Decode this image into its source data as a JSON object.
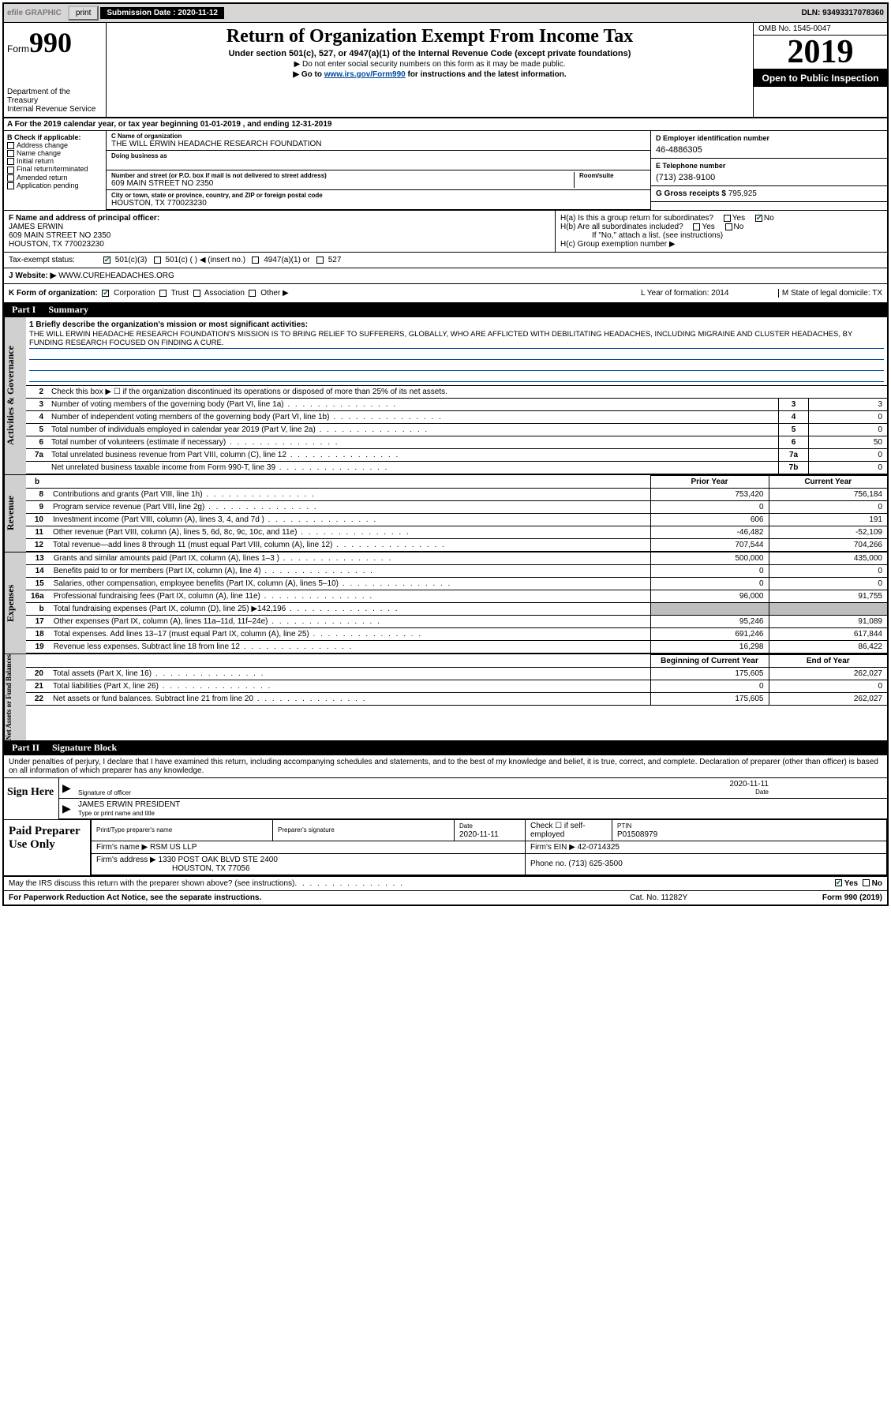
{
  "topbar": {
    "efile": "efile GRAPHIC",
    "print": "print",
    "subdate_label": "Submission Date :",
    "subdate": "2020-11-12",
    "dln": "DLN: 93493317078360"
  },
  "header": {
    "form_prefix": "Form",
    "form_no": "990",
    "dept": "Department of the Treasury\nInternal Revenue Service",
    "title": "Return of Organization Exempt From Income Tax",
    "sub1": "Under section 501(c), 527, or 4947(a)(1) of the Internal Revenue Code (except private foundations)",
    "sub2": "▶ Do not enter social security numbers on this form as it may be made public.",
    "sub3_pre": "▶ Go to ",
    "sub3_link": "www.irs.gov/Form990",
    "sub3_post": " for instructions and the latest information.",
    "omb": "OMB No. 1545-0047",
    "year": "2019",
    "open": "Open to Public Inspection"
  },
  "lineA": {
    "text": "A For the 2019 calendar year, or tax year beginning 01-01-2019    , and ending 12-31-2019"
  },
  "B": {
    "label": "B Check if applicable:",
    "opts": [
      "Address change",
      "Name change",
      "Initial return",
      "Final return/terminated",
      "Amended return",
      "Application pending"
    ]
  },
  "C": {
    "name_label": "C Name of organization",
    "name": "THE WILL ERWIN HEADACHE RESEARCH FOUNDATION",
    "dba_label": "Doing business as",
    "addr_label": "Number and street (or P.O. box if mail is not delivered to street address)",
    "room_label": "Room/suite",
    "addr": "609 MAIN STREET NO 2350",
    "city_label": "City or town, state or province, country, and ZIP or foreign postal code",
    "city": "HOUSTON, TX  770023230"
  },
  "D": {
    "label": "D Employer identification number",
    "val": "46-4886305"
  },
  "E": {
    "label": "E Telephone number",
    "val": "(713) 238-9100"
  },
  "G": {
    "label": "G Gross receipts $",
    "val": "795,925"
  },
  "F": {
    "label": "F  Name and address of principal officer:",
    "name": "JAMES ERWIN",
    "addr1": "609 MAIN STREET NO 2350",
    "addr2": "HOUSTON, TX  770023230"
  },
  "H": {
    "a": "H(a)  Is this a group return for subordinates?",
    "b": "H(b)  Are all subordinates included?",
    "bnote": "If \"No,\" attach a list. (see instructions)",
    "c": "H(c)  Group exemption number ▶"
  },
  "I": {
    "label": "Tax-exempt status:",
    "opts": [
      "501(c)(3)",
      "501(c) (   ) ◀ (insert no.)",
      "4947(a)(1) or",
      "527"
    ],
    "checked": 0
  },
  "J": {
    "label": "J  Website: ▶",
    "val": "WWW.CUREHEADACHES.ORG"
  },
  "K": {
    "label": "K Form of organization:",
    "opts": [
      "Corporation",
      "Trust",
      "Association",
      "Other ▶"
    ],
    "checked": 0,
    "L": "L Year of formation: 2014",
    "M": "M State of legal domicile: TX"
  },
  "part1": {
    "hdr_num": "Part I",
    "hdr_title": "Summary",
    "q1_label": "1  Briefly describe the organization's mission or most significant activities:",
    "q1_text": "THE WILL ERWIN HEADACHE RESEARCH FOUNDATION'S MISSION IS TO BRING RELIEF TO SUFFERERS, GLOBALLY, WHO ARE AFFLICTED WITH DEBILITATING HEADACHES, INCLUDING MIGRAINE AND CLUSTER HEADACHES, BY FUNDING RESEARCH FOCUSED ON FINDING A CURE.",
    "q2": "Check this box ▶ ☐  if the organization discontinued its operations or disposed of more than 25% of its net assets.",
    "side_act": "Activities & Governance",
    "side_rev": "Revenue",
    "side_exp": "Expenses",
    "side_net": "Net Assets or Fund Balances",
    "rows_act": [
      {
        "n": "3",
        "t": "Number of voting members of the governing body (Part VI, line 1a)",
        "box": "3",
        "v": "3"
      },
      {
        "n": "4",
        "t": "Number of independent voting members of the governing body (Part VI, line 1b)",
        "box": "4",
        "v": "0"
      },
      {
        "n": "5",
        "t": "Total number of individuals employed in calendar year 2019 (Part V, line 2a)",
        "box": "5",
        "v": "0"
      },
      {
        "n": "6",
        "t": "Total number of volunteers (estimate if necessary)",
        "box": "6",
        "v": "50"
      },
      {
        "n": "7a",
        "t": "Total unrelated business revenue from Part VIII, column (C), line 12",
        "box": "7a",
        "v": "0"
      },
      {
        "n": "",
        "t": "Net unrelated business taxable income from Form 990-T, line 39",
        "box": "7b",
        "v": "0"
      }
    ],
    "col_py": "Prior Year",
    "col_cy": "Current Year",
    "rows_rev": [
      {
        "n": "8",
        "t": "Contributions and grants (Part VIII, line 1h)",
        "py": "753,420",
        "cy": "756,184"
      },
      {
        "n": "9",
        "t": "Program service revenue (Part VIII, line 2g)",
        "py": "0",
        "cy": "0"
      },
      {
        "n": "10",
        "t": "Investment income (Part VIII, column (A), lines 3, 4, and 7d )",
        "py": "606",
        "cy": "191"
      },
      {
        "n": "11",
        "t": "Other revenue (Part VIII, column (A), lines 5, 6d, 8c, 9c, 10c, and 11e)",
        "py": "-46,482",
        "cy": "-52,109"
      },
      {
        "n": "12",
        "t": "Total revenue—add lines 8 through 11 (must equal Part VIII, column (A), line 12)",
        "py": "707,544",
        "cy": "704,266"
      }
    ],
    "rows_exp": [
      {
        "n": "13",
        "t": "Grants and similar amounts paid (Part IX, column (A), lines 1–3 )",
        "py": "500,000",
        "cy": "435,000"
      },
      {
        "n": "14",
        "t": "Benefits paid to or for members (Part IX, column (A), line 4)",
        "py": "0",
        "cy": "0"
      },
      {
        "n": "15",
        "t": "Salaries, other compensation, employee benefits (Part IX, column (A), lines 5–10)",
        "py": "0",
        "cy": "0"
      },
      {
        "n": "16a",
        "t": "Professional fundraising fees (Part IX, column (A), line 11e)",
        "py": "96,000",
        "cy": "91,755"
      },
      {
        "n": "b",
        "t": "Total fundraising expenses (Part IX, column (D), line 25) ▶142,196",
        "py": "",
        "cy": "",
        "grey": true
      },
      {
        "n": "17",
        "t": "Other expenses (Part IX, column (A), lines 11a–11d, 11f–24e)",
        "py": "95,246",
        "cy": "91,089"
      },
      {
        "n": "18",
        "t": "Total expenses. Add lines 13–17 (must equal Part IX, column (A), line 25)",
        "py": "691,246",
        "cy": "617,844"
      },
      {
        "n": "19",
        "t": "Revenue less expenses. Subtract line 18 from line 12",
        "py": "16,298",
        "cy": "86,422"
      }
    ],
    "col_boy": "Beginning of Current Year",
    "col_eoy": "End of Year",
    "rows_net": [
      {
        "n": "20",
        "t": "Total assets (Part X, line 16)",
        "py": "175,605",
        "cy": "262,027"
      },
      {
        "n": "21",
        "t": "Total liabilities (Part X, line 26)",
        "py": "0",
        "cy": "0"
      },
      {
        "n": "22",
        "t": "Net assets or fund balances. Subtract line 21 from line 20",
        "py": "175,605",
        "cy": "262,027"
      }
    ]
  },
  "part2": {
    "hdr_num": "Part II",
    "hdr_title": "Signature Block",
    "decl": "Under penalties of perjury, I declare that I have examined this return, including accompanying schedules and statements, and to the best of my knowledge and belief, it is true, correct, and complete. Declaration of preparer (other than officer) is based on all information of which preparer has any knowledge."
  },
  "sign": {
    "left": "Sign Here",
    "sig_label": "Signature of officer",
    "date": "2020-11-11",
    "date_label": "Date",
    "name": "JAMES ERWIN  PRESIDENT",
    "name_label": "Type or print name and title"
  },
  "paid": {
    "left": "Paid Preparer Use Only",
    "r1c1": "Print/Type preparer's name",
    "r1c2": "Preparer's signature",
    "r1c3_label": "Date",
    "r1c3": "2020-11-11",
    "r1c4": "Check ☐ if self-employed",
    "r1c5_label": "PTIN",
    "r1c5": "P01508979",
    "r2c1_label": "Firm's name    ▶",
    "r2c1": "RSM US LLP",
    "r2c2_label": "Firm's EIN ▶",
    "r2c2": "42-0714325",
    "r3c1_label": "Firm's address ▶",
    "r3c1a": "1330 POST OAK BLVD STE 2400",
    "r3c1b": "HOUSTON, TX  77056",
    "r3c2_label": "Phone no.",
    "r3c2": "(713) 625-3500",
    "irs_q": "May the IRS discuss this return with the preparer shown above? (see instructions)",
    "yes": "Yes",
    "no": "No"
  },
  "footer": {
    "left": "For Paperwork Reduction Act Notice, see the separate instructions.",
    "mid": "Cat. No. 11282Y",
    "right": "Form 990 (2019)"
  }
}
